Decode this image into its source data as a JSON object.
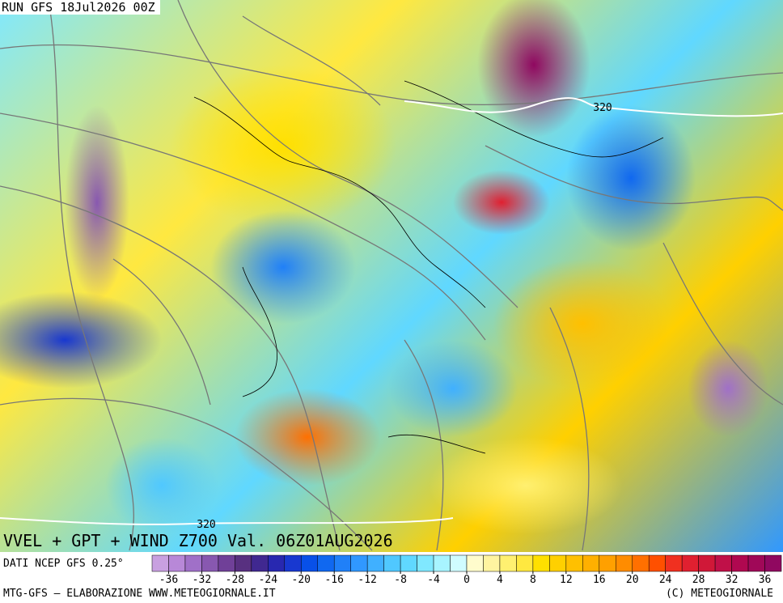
{
  "header": {
    "run": "RUN GFS 18Jul2026 00Z"
  },
  "map": {
    "title": "VVEL + GPT + WIND Z700 Val. 06Z01AUG2026",
    "contour_labels": [
      "320",
      "320"
    ]
  },
  "legend": {
    "source": "DATI NCEP GFS 0.25°",
    "range": [
      -38,
      38
    ],
    "step": 2,
    "ticks": [
      -36,
      -32,
      -28,
      -24,
      -20,
      -16,
      -12,
      -8,
      -4,
      0,
      4,
      8,
      12,
      16,
      20,
      24,
      28,
      32,
      36
    ],
    "colors": [
      "#c8a0e0",
      "#b888d8",
      "#a070c8",
      "#8858b0",
      "#704098",
      "#583080",
      "#402890",
      "#2828b0",
      "#1838d0",
      "#0850e8",
      "#1068f0",
      "#2080f8",
      "#3098ff",
      "#40b0ff",
      "#50c8ff",
      "#60d8ff",
      "#80e8ff",
      "#a8f4ff",
      "#d0fcff",
      "#fffccc",
      "#fff4a0",
      "#fff070",
      "#ffe840",
      "#ffe000",
      "#ffd000",
      "#ffc000",
      "#ffb000",
      "#ffa000",
      "#ff8c00",
      "#ff7000",
      "#ff5000",
      "#f03020",
      "#e02030",
      "#d01838",
      "#c01048",
      "#b00850",
      "#a00858",
      "#900860"
    ]
  },
  "footer": {
    "left": "MTG-GFS — ELABORAZIONE WWW.METEOGIORNALE.IT",
    "right": "(C) METEOGIORNALE"
  }
}
